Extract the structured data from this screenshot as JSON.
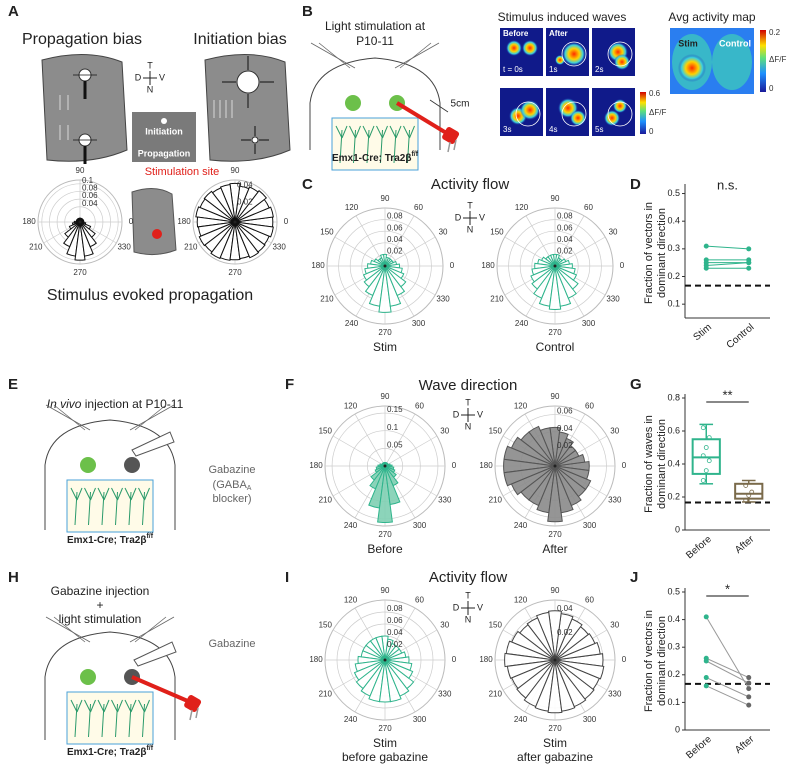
{
  "A": {
    "label": "A",
    "title_left": "Propagation bias",
    "title_right": "Initiation bias",
    "compass": [
      "T",
      "D",
      "V",
      "N"
    ],
    "legend": [
      "Initiation",
      "Propagation"
    ],
    "stim_site": "Stimulation site",
    "caption": "Stimulus evoked propagation",
    "roses": [
      {
        "rlim": 0.11,
        "rticks": [
          0.04,
          0.06,
          0.08,
          0.1
        ],
        "angle_ticks": [
          90,
          0,
          180,
          210,
          330,
          270
        ],
        "color": "#111",
        "fill": "#fff",
        "values": [
          0.01,
          0.01,
          0.01,
          0.01,
          0.01,
          0.01,
          0.01,
          0.01,
          0.01,
          0.01,
          0.01,
          0.01,
          0.015,
          0.02,
          0.03,
          0.05,
          0.07,
          0.09,
          0.1,
          0.09,
          0.07,
          0.05,
          0.03,
          0.015
        ]
      },
      {
        "rlim": 0.05,
        "rticks": [
          0.02,
          0.04
        ],
        "angle_ticks": [
          90,
          0,
          180,
          210,
          330,
          270
        ],
        "color": "#111",
        "fill": "#fff",
        "values": [
          0.045,
          0.046,
          0.044,
          0.047,
          0.045,
          0.043,
          0.046,
          0.045,
          0.044,
          0.046,
          0.045,
          0.047,
          0.045,
          0.044,
          0.046,
          0.045,
          0.047,
          0.046,
          0.045,
          0.044,
          0.046,
          0.045,
          0.044,
          0.046
        ]
      }
    ]
  },
  "B": {
    "label": "B",
    "stim_text": [
      "Light stimulation at",
      "P10-11"
    ],
    "distance": "5cm",
    "genotype": "Emx1-Cre; Tra2β",
    "genotype_sup": "f/f",
    "waves_title": "Stimulus induced waves",
    "frames": [
      "Before",
      "After"
    ],
    "times": [
      "t = 0s",
      "1s",
      "2s",
      "3s",
      "4s",
      "5s"
    ],
    "colorbar": {
      "max": 0.6,
      "unit": "ΔF/F",
      "min": 0
    },
    "avg_title": "Avg activity map",
    "avg_labels": [
      "Stim",
      "Control"
    ],
    "avg_colorbar": {
      "max": 0.2,
      "unit": "ΔF/F",
      "min": 0
    }
  },
  "C": {
    "label": "C",
    "title": "Activity flow",
    "compass": [
      "T",
      "D",
      "V",
      "N"
    ],
    "roses": [
      {
        "caption": [
          "Stim"
        ],
        "rlim": 0.1,
        "rticks": [
          0.02,
          0.04,
          0.06,
          0.08
        ],
        "angle_ticks": [
          90,
          60,
          30,
          0,
          330,
          300,
          270,
          240,
          210,
          180,
          150,
          120
        ],
        "color": "#2fb48c",
        "fill": "#fff",
        "values": [
          0.025,
          0.02,
          0.015,
          0.015,
          0.015,
          0.015,
          0.02,
          0.02,
          0.015,
          0.015,
          0.02,
          0.025,
          0.03,
          0.035,
          0.04,
          0.045,
          0.055,
          0.07,
          0.08,
          0.07,
          0.055,
          0.045,
          0.035,
          0.03
        ]
      },
      {
        "caption": [
          "Control"
        ],
        "rlim": 0.1,
        "rticks": [
          0.02,
          0.04,
          0.06,
          0.08
        ],
        "angle_ticks": [
          90,
          60,
          30,
          0,
          330,
          300,
          270,
          240,
          210,
          180,
          150,
          120
        ],
        "color": "#2fb48c",
        "fill": "#fff",
        "values": [
          0.03,
          0.025,
          0.02,
          0.015,
          0.015,
          0.02,
          0.02,
          0.02,
          0.02,
          0.02,
          0.025,
          0.03,
          0.035,
          0.04,
          0.045,
          0.05,
          0.06,
          0.07,
          0.075,
          0.07,
          0.06,
          0.05,
          0.04,
          0.035
        ]
      }
    ]
  },
  "D": {
    "label": "D",
    "ylabel": [
      "Fraction of vectors in",
      "dominant direction"
    ],
    "ylim": [
      0.05,
      0.52
    ],
    "yticks": [
      0.1,
      0.2,
      0.3,
      0.4,
      0.5
    ],
    "categories": [
      "Stim",
      "Control"
    ],
    "pairs": [
      [
        0.31,
        0.3
      ],
      [
        0.26,
        0.26
      ],
      [
        0.25,
        0.25
      ],
      [
        0.24,
        0.25
      ],
      [
        0.23,
        0.23
      ]
    ],
    "colors": [
      "#2fb48c",
      "#2fb48c"
    ],
    "chance": 0.167,
    "annotation": "n.s."
  },
  "E": {
    "label": "E",
    "title_italic": "In vivo",
    "title_rest": " injection at P10-11",
    "drug": "Gabazine",
    "drug_note": [
      "(GABA",
      "A",
      " blocker)"
    ],
    "genotype": "Emx1-Cre; Tra2β",
    "genotype_sup": "f/f"
  },
  "F": {
    "label": "F",
    "title": "Wave direction",
    "roses": [
      {
        "caption": [
          "Before"
        ],
        "rlim": 0.17,
        "rticks": [
          0.05,
          0.1,
          0.15
        ],
        "angle_ticks": [
          90,
          60,
          30,
          0,
          330,
          300,
          270,
          240,
          210,
          180,
          150,
          120
        ],
        "color": "#2fb48c",
        "fill": "#7fcfb3",
        "values": [
          0.02,
          0.015,
          0.01,
          0.01,
          0.01,
          0.01,
          0.01,
          0.01,
          0.01,
          0.01,
          0.01,
          0.015,
          0.02,
          0.025,
          0.03,
          0.05,
          0.07,
          0.12,
          0.16,
          0.11,
          0.06,
          0.04,
          0.03,
          0.025
        ]
      },
      {
        "caption": [
          "After"
        ],
        "rlim": 0.07,
        "rticks": [
          0.02,
          0.04,
          0.06
        ],
        "angle_ticks": [
          90,
          60,
          30,
          0,
          330,
          300,
          270,
          240,
          210,
          180,
          150,
          120
        ],
        "color": "#555",
        "fill": "#8a8a8a",
        "values": [
          0.04,
          0.035,
          0.03,
          0.03,
          0.035,
          0.04,
          0.045,
          0.045,
          0.05,
          0.05,
          0.055,
          0.06,
          0.06,
          0.06,
          0.055,
          0.05,
          0.05,
          0.055,
          0.065,
          0.055,
          0.05,
          0.045,
          0.045,
          0.04
        ]
      }
    ]
  },
  "G": {
    "label": "G",
    "ylabel": [
      "Fraction of waves in",
      "dominant direction"
    ],
    "ylim": [
      0,
      0.8
    ],
    "yticks": [
      0,
      0.2,
      0.4,
      0.6,
      0.8
    ],
    "categories": [
      "Before",
      "After"
    ],
    "colors": [
      "#2fb48c",
      "#7a6a4a"
    ],
    "chance": 0.167,
    "annotation": "**",
    "boxes": [
      {
        "whislo": 0.28,
        "q1": 0.34,
        "med": 0.44,
        "q3": 0.55,
        "whishi": 0.64,
        "points": [
          0.3,
          0.36,
          0.42,
          0.45,
          0.5,
          0.56,
          0.62
        ]
      },
      {
        "whislo": 0.17,
        "q1": 0.19,
        "med": 0.22,
        "q3": 0.28,
        "whishi": 0.3,
        "points": [
          0.18,
          0.21,
          0.23,
          0.27
        ]
      }
    ]
  },
  "H": {
    "label": "H",
    "title": [
      "Gabazine injection",
      "+",
      "light stimulation"
    ],
    "drug": "Gabazine",
    "genotype": "Emx1-Cre; Tra2β",
    "genotype_sup": "f/f"
  },
  "I": {
    "label": "I",
    "title": "Activity flow",
    "compass": [
      "T",
      "D",
      "V",
      "N"
    ],
    "roses": [
      {
        "caption": [
          "Stim",
          "before gabazine"
        ],
        "rlim": 0.1,
        "rticks": [
          0.02,
          0.04,
          0.06,
          0.08
        ],
        "angle_ticks": [
          90,
          60,
          30,
          0,
          330,
          300,
          270,
          240,
          210,
          180,
          150,
          120
        ],
        "color": "#2fb48c",
        "fill": "#fff",
        "values": [
          0.04,
          0.035,
          0.03,
          0.03,
          0.03,
          0.035,
          0.04,
          0.04,
          0.04,
          0.04,
          0.04,
          0.04,
          0.045,
          0.05,
          0.055,
          0.06,
          0.065,
          0.07,
          0.07,
          0.07,
          0.065,
          0.06,
          0.05,
          0.045
        ]
      },
      {
        "caption": [
          "Stim",
          "after gabazine"
        ],
        "rlim": 0.05,
        "rticks": [
          0.02,
          0.04
        ],
        "angle_ticks": [
          90,
          60,
          30,
          0,
          330,
          300,
          270,
          240,
          210,
          180,
          150,
          120
        ],
        "color": "#444",
        "fill": "#fff",
        "values": [
          0.04,
          0.038,
          0.036,
          0.035,
          0.037,
          0.039,
          0.041,
          0.04,
          0.038,
          0.037,
          0.039,
          0.041,
          0.042,
          0.04,
          0.039,
          0.04,
          0.042,
          0.043,
          0.044,
          0.043,
          0.042,
          0.041,
          0.04,
          0.041
        ]
      }
    ]
  },
  "J": {
    "label": "J",
    "ylabel": [
      "Fraction of vectors in",
      "dominant direction"
    ],
    "ylim": [
      0,
      0.5
    ],
    "yticks": [
      0,
      0.1,
      0.2,
      0.3,
      0.4,
      0.5
    ],
    "categories": [
      "Before",
      "After"
    ],
    "pairs": [
      [
        0.41,
        0.15
      ],
      [
        0.26,
        0.19
      ],
      [
        0.25,
        0.17
      ],
      [
        0.19,
        0.12
      ],
      [
        0.16,
        0.09
      ]
    ],
    "colors": [
      "#2fb48c",
      "#666"
    ],
    "chance": 0.167,
    "annotation": "*"
  }
}
